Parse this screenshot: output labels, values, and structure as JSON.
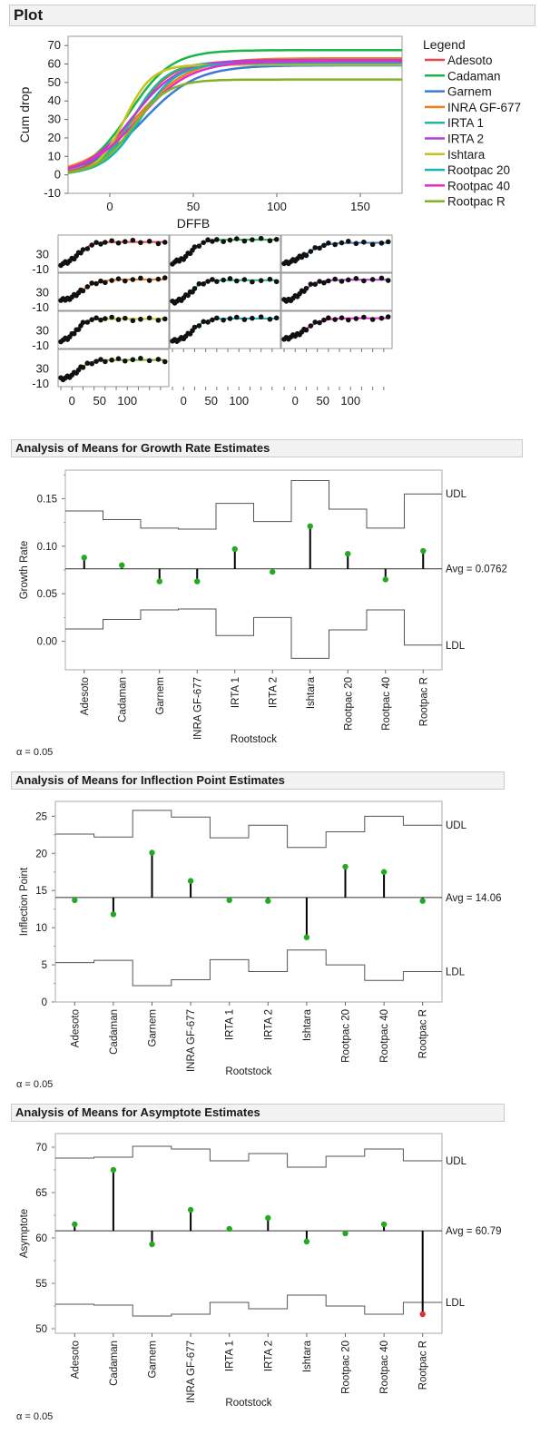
{
  "header": {
    "title": "Plot"
  },
  "legend": {
    "title": "Legend",
    "items": [
      {
        "label": "Adesoto",
        "color": "#e8474f"
      },
      {
        "label": "Cadaman",
        "color": "#1bb54a"
      },
      {
        "label": "Garnem",
        "color": "#3a7bd5"
      },
      {
        "label": "INRA GF-677",
        "color": "#ef7d1a"
      },
      {
        "label": "IRTA 1",
        "color": "#1fb99a"
      },
      {
        "label": "IRTA 2",
        "color": "#b43fd4"
      },
      {
        "label": "Ishtara",
        "color": "#c9c21c"
      },
      {
        "label": "Rootpac 20",
        "color": "#1ab3b8"
      },
      {
        "label": "Rootpac 40",
        "color": "#e62cc8"
      },
      {
        "label": "Rootpac R",
        "color": "#7fb51f"
      }
    ]
  },
  "anom": {
    "growth": {
      "header": "Analysis of Means for Growth Rate Estimates",
      "alpha": "α = 0.05"
    },
    "inflection": {
      "header": "Analysis of Means for Inflection Point Estimates",
      "alpha": "α = 0.05"
    },
    "asymptote": {
      "header": "Analysis of Means for Asymptote Estimates",
      "alpha": "α = 0.05"
    }
  },
  "chart_data": [
    {
      "type": "line",
      "xlabel": "DFFB",
      "ylabel": "Cum drop",
      "xlim": [
        -25,
        175
      ],
      "ylim": [
        -10,
        75
      ],
      "xticks": [
        0,
        50,
        100,
        150
      ],
      "yticks": [
        -10,
        0,
        10,
        20,
        30,
        40,
        50,
        60,
        70
      ],
      "series": [
        {
          "name": "Adesoto",
          "asymptote": 61.5,
          "growth_rate": 0.088,
          "inflection": 13.7
        },
        {
          "name": "Cadaman",
          "asymptote": 67.5,
          "growth_rate": 0.08,
          "inflection": 11.8
        },
        {
          "name": "Garnem",
          "asymptote": 59.3,
          "growth_rate": 0.063,
          "inflection": 20.1
        },
        {
          "name": "INRA GF-677",
          "asymptote": 63.1,
          "growth_rate": 0.063,
          "inflection": 16.3
        },
        {
          "name": "IRTA 1",
          "asymptote": 61.0,
          "growth_rate": 0.097,
          "inflection": 13.7
        },
        {
          "name": "IRTA 2",
          "asymptote": 62.2,
          "growth_rate": 0.073,
          "inflection": 13.6
        },
        {
          "name": "Ishtara",
          "asymptote": 59.6,
          "growth_rate": 0.121,
          "inflection": 8.7
        },
        {
          "name": "Rootpac 20",
          "asymptote": 60.5,
          "growth_rate": 0.092,
          "inflection": 18.2
        },
        {
          "name": "Rootpac 40",
          "asymptote": 61.5,
          "growth_rate": 0.065,
          "inflection": 17.5
        },
        {
          "name": "Rootpac R",
          "asymptote": 51.6,
          "growth_rate": 0.095,
          "inflection": 13.6
        }
      ]
    },
    {
      "type": "scatter",
      "panel_xticks": [
        0,
        50,
        100
      ],
      "panel_yticks": [
        30,
        -10
      ]
    },
    {
      "type": "bar",
      "xlabel": "Rootstock",
      "ylabel": "Growth Rate",
      "ylim": [
        -0.03,
        0.18
      ],
      "yticks": [
        0.0,
        0.05,
        0.1,
        0.15
      ],
      "ytick_labels": [
        "0.00",
        "0.05",
        "0.10",
        "0.15"
      ],
      "avg": 0.0762,
      "avg_label": "Avg = 0.0762",
      "udl_label": "UDL",
      "ldl_label": "LDL",
      "categories": [
        "Adesoto",
        "Cadaman",
        "Garnem",
        "INRA GF-677",
        "IRTA 1",
        "IRTA 2",
        "Ishtara",
        "Rootpac 20",
        "Rootpac 40",
        "Rootpac R"
      ],
      "values": [
        0.088,
        0.08,
        0.063,
        0.063,
        0.097,
        0.073,
        0.121,
        0.092,
        0.065,
        0.095
      ],
      "udl": [
        0.137,
        0.128,
        0.119,
        0.118,
        0.145,
        0.126,
        0.169,
        0.139,
        0.119,
        0.155
      ],
      "ldl": [
        0.013,
        0.023,
        0.033,
        0.034,
        0.006,
        0.025,
        -0.018,
        0.012,
        0.033,
        -0.004
      ]
    },
    {
      "type": "bar",
      "xlabel": "Rootstock",
      "ylabel": "Inflection Point",
      "ylim": [
        0,
        27
      ],
      "yticks": [
        0,
        5,
        10,
        15,
        20,
        25
      ],
      "ytick_labels": [
        "0",
        "5",
        "10",
        "15",
        "20",
        "25"
      ],
      "avg": 14.06,
      "avg_label": "Avg = 14.06",
      "udl_label": "UDL",
      "ldl_label": "LDL",
      "categories": [
        "Adesoto",
        "Cadaman",
        "Garnem",
        "INRA GF-677",
        "IRTA 1",
        "IRTA 2",
        "Ishtara",
        "Rootpac 20",
        "Rootpac 40",
        "Rootpac R"
      ],
      "values": [
        13.7,
        11.8,
        20.1,
        16.3,
        13.7,
        13.6,
        8.7,
        18.2,
        17.5,
        13.6
      ],
      "udl": [
        22.6,
        22.2,
        25.8,
        24.9,
        22.1,
        23.8,
        20.8,
        22.9,
        25.0,
        23.8
      ],
      "ldl": [
        5.3,
        5.6,
        2.2,
        3.0,
        5.7,
        4.1,
        7.0,
        5.0,
        2.9,
        4.1
      ]
    },
    {
      "type": "bar",
      "xlabel": "Rootstock",
      "ylabel": "Asymptote",
      "ylim": [
        49.5,
        71.5
      ],
      "yticks": [
        50,
        55,
        60,
        65,
        70
      ],
      "ytick_labels": [
        "50",
        "55",
        "60",
        "65",
        "70"
      ],
      "avg": 60.79,
      "avg_label": "Avg = 60.79",
      "udl_label": "UDL",
      "ldl_label": "LDL",
      "categories": [
        "Adesoto",
        "Cadaman",
        "Garnem",
        "INRA GF-677",
        "IRTA 1",
        "IRTA 2",
        "Ishtara",
        "Rootpac 20",
        "Rootpac 40",
        "Rootpac R"
      ],
      "values": [
        61.5,
        67.5,
        59.3,
        63.1,
        61.0,
        62.2,
        59.6,
        60.5,
        61.5,
        51.6
      ],
      "udl": [
        68.8,
        68.9,
        70.1,
        69.8,
        68.5,
        69.3,
        67.8,
        69.0,
        69.8,
        68.5
      ],
      "ldl": [
        52.7,
        52.6,
        51.4,
        51.6,
        52.9,
        52.2,
        53.7,
        52.5,
        51.6,
        52.9
      ],
      "flagged_color": "#e03030"
    }
  ]
}
